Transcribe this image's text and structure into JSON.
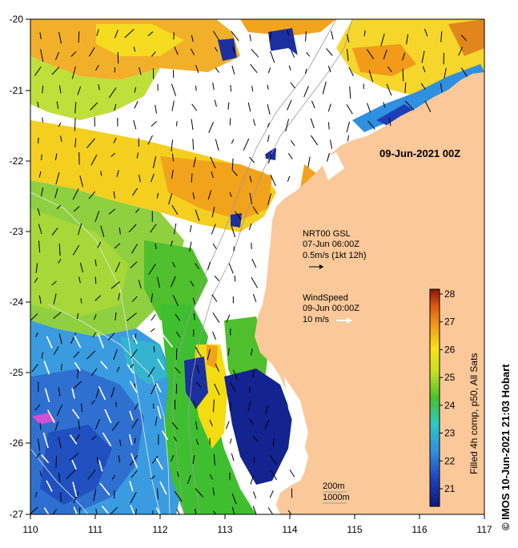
{
  "map": {
    "lon_labels": [
      "110",
      "111",
      "112",
      "113",
      "114",
      "115",
      "116",
      "117"
    ],
    "lat_labels": [
      "-20",
      "-21",
      "-22",
      "-23",
      "-24",
      "-25",
      "-26",
      "-27"
    ],
    "date_stamp": "09-Jun-2021 00Z",
    "currents_legend": {
      "title": "NRT00 GSL",
      "time": "07-Jun 06:00Z",
      "scale": "0.5m/s (1kt 12h)"
    },
    "wind_legend": {
      "title": "WindSpeed",
      "time": "09-Jun 00:00Z",
      "scale": "10 m/s"
    },
    "depth_legend": {
      "line1": "200m",
      "line2": "1000m"
    },
    "colorbar": {
      "ticks": [
        "28",
        "27",
        "26",
        "25",
        "24",
        "23",
        "22",
        "21"
      ],
      "caption": "Filled 4h comp, p50, All Sats"
    },
    "credit": "© IMOS 10-Jun-2021 21:03 Hobart",
    "colors": {
      "land": "#fbc89a",
      "cloud": "#ffffff",
      "orange": "#f2a31c",
      "yellow": "#f4dc12",
      "green": "#4fbf2e",
      "lightgreen": "#a6d83a",
      "blue": "#3a7fd6",
      "darkblue": "#1c2f9e",
      "navy": "#0b1a7a"
    }
  }
}
